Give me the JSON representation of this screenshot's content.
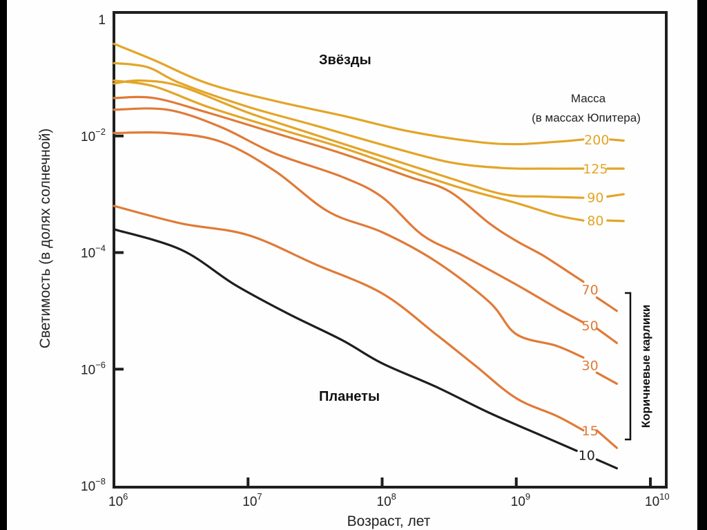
{
  "chart_data": {
    "type": "line",
    "title": "",
    "xlabel": "Возраст, лет",
    "ylabel": "Светимость (в долях солнечной)",
    "xscale": "log",
    "yscale": "log",
    "xlim": [
      1000000,
      10000000000
    ],
    "ylim": [
      1e-08,
      1
    ],
    "x_ticks": [
      {
        "value": 1000000,
        "base": "10",
        "exp": "6"
      },
      {
        "value": 10000000,
        "base": "10",
        "exp": "7"
      },
      {
        "value": 100000000,
        "base": "10",
        "exp": "8"
      },
      {
        "value": 1000000000,
        "base": "10",
        "exp": "9"
      },
      {
        "value": 10000000000,
        "base": "10",
        "exp": "10"
      }
    ],
    "y_ticks": [
      {
        "value": 1,
        "base": "1",
        "exp": ""
      },
      {
        "value": 0.01,
        "base": "10",
        "exp": "−2"
      },
      {
        "value": 0.0001,
        "base": "10",
        "exp": "−4"
      },
      {
        "value": 1e-06,
        "base": "10",
        "exp": "−6"
      },
      {
        "value": 1e-08,
        "base": "10",
        "exp": "−8"
      }
    ],
    "grid": false,
    "annotations": {
      "stars": "Звёзды",
      "planets": "Планеты",
      "legend_title_line1": "Масса",
      "legend_title_line2": "(в массах Юпитера)",
      "brown_dwarfs": "Коричневые карлики"
    },
    "legend_placement": "right",
    "series": [
      {
        "name": "200",
        "group": "star",
        "color": "#e3a528",
        "points_log10": [
          [
            6.0,
            -0.42
          ],
          [
            6.3,
            -0.7
          ],
          [
            6.7,
            -1.1
          ],
          [
            7.2,
            -1.4
          ],
          [
            7.7,
            -1.65
          ],
          [
            8.2,
            -1.92
          ],
          [
            8.7,
            -2.1
          ],
          [
            9.0,
            -2.14
          ],
          [
            9.3,
            -2.1
          ],
          [
            9.5,
            -2.06
          ]
        ],
        "tail_log10": [
          [
            9.7,
            -2.06
          ],
          [
            9.8,
            -2.08
          ]
        ]
      },
      {
        "name": "125",
        "group": "star",
        "color": "#e3a528",
        "points_log10": [
          [
            6.0,
            -0.75
          ],
          [
            6.25,
            -0.82
          ],
          [
            6.5,
            -1.1
          ],
          [
            7.0,
            -1.5
          ],
          [
            7.5,
            -1.82
          ],
          [
            8.0,
            -2.15
          ],
          [
            8.5,
            -2.45
          ],
          [
            8.9,
            -2.55
          ],
          [
            9.2,
            -2.56
          ],
          [
            9.5,
            -2.56
          ]
        ],
        "tail_log10": [
          [
            9.68,
            -2.56
          ],
          [
            9.8,
            -2.56
          ]
        ]
      },
      {
        "name": "90",
        "group": "star",
        "color": "#e3a528",
        "points_log10": [
          [
            6.0,
            -1.1
          ],
          [
            6.2,
            -1.05
          ],
          [
            6.5,
            -1.15
          ],
          [
            7.0,
            -1.6
          ],
          [
            7.5,
            -1.98
          ],
          [
            8.0,
            -2.35
          ],
          [
            8.5,
            -2.72
          ],
          [
            8.9,
            -3.0
          ],
          [
            9.2,
            -3.04
          ],
          [
            9.5,
            -3.06
          ]
        ],
        "tail_log10": [
          [
            9.68,
            -3.04
          ],
          [
            9.8,
            -3.0
          ]
        ]
      },
      {
        "name": "80",
        "group": "star",
        "color": "#e3a528",
        "points_log10": [
          [
            6.0,
            -1.05
          ],
          [
            6.3,
            -1.15
          ],
          [
            6.7,
            -1.5
          ],
          [
            7.2,
            -1.86
          ],
          [
            7.7,
            -2.2
          ],
          [
            8.2,
            -2.6
          ],
          [
            8.6,
            -2.9
          ],
          [
            9.0,
            -3.15
          ],
          [
            9.3,
            -3.36
          ],
          [
            9.5,
            -3.45
          ]
        ],
        "tail_log10": [
          [
            9.68,
            -3.45
          ],
          [
            9.8,
            -3.46
          ]
        ]
      },
      {
        "name": "70",
        "group": "brown_dwarf",
        "color": "#e07a37",
        "points_log10": [
          [
            6.0,
            -1.35
          ],
          [
            6.3,
            -1.35
          ],
          [
            6.7,
            -1.6
          ],
          [
            7.2,
            -1.95
          ],
          [
            7.7,
            -2.3
          ],
          [
            8.2,
            -2.7
          ],
          [
            8.5,
            -2.95
          ],
          [
            8.8,
            -3.5
          ],
          [
            9.0,
            -3.8
          ],
          [
            9.2,
            -4.05
          ],
          [
            9.4,
            -4.35
          ],
          [
            9.5,
            -4.5
          ]
        ],
        "tail_log10": [
          [
            9.6,
            -4.77
          ],
          [
            9.75,
            -5.0
          ]
        ]
      },
      {
        "name": "50",
        "group": "brown_dwarf",
        "color": "#e07a37",
        "points_log10": [
          [
            6.0,
            -1.55
          ],
          [
            6.4,
            -1.55
          ],
          [
            6.8,
            -1.85
          ],
          [
            7.2,
            -2.3
          ],
          [
            7.7,
            -2.7
          ],
          [
            8.0,
            -3.05
          ],
          [
            8.3,
            -3.7
          ],
          [
            8.6,
            -4.05
          ],
          [
            9.0,
            -4.55
          ],
          [
            9.3,
            -4.95
          ],
          [
            9.5,
            -5.2
          ]
        ],
        "tail_log10": [
          [
            9.6,
            -5.3
          ],
          [
            9.75,
            -5.55
          ]
        ]
      },
      {
        "name": "30",
        "group": "brown_dwarf",
        "color": "#e07a37",
        "points_log10": [
          [
            6.0,
            -1.95
          ],
          [
            6.4,
            -1.95
          ],
          [
            6.8,
            -2.1
          ],
          [
            7.2,
            -2.6
          ],
          [
            7.6,
            -3.3
          ],
          [
            8.0,
            -3.65
          ],
          [
            8.4,
            -4.15
          ],
          [
            8.8,
            -4.85
          ],
          [
            9.0,
            -5.4
          ],
          [
            9.3,
            -5.6
          ],
          [
            9.5,
            -5.8
          ]
        ],
        "tail_log10": [
          [
            9.6,
            -6.06
          ],
          [
            9.75,
            -6.25
          ]
        ]
      },
      {
        "name": "15",
        "group": "brown_dwarf",
        "color": "#e07a37",
        "points_log10": [
          [
            6.0,
            -3.2
          ],
          [
            6.5,
            -3.5
          ],
          [
            7.0,
            -3.7
          ],
          [
            7.5,
            -4.2
          ],
          [
            8.0,
            -4.7
          ],
          [
            8.4,
            -5.4
          ],
          [
            8.7,
            -5.95
          ],
          [
            9.0,
            -6.5
          ],
          [
            9.3,
            -6.8
          ],
          [
            9.5,
            -7.05
          ]
        ],
        "tail_log10": [
          [
            9.6,
            -7.05
          ],
          [
            9.75,
            -7.35
          ]
        ]
      },
      {
        "name": "10",
        "group": "planet",
        "color": "#1e1e1e",
        "points_log10": [
          [
            6.0,
            -3.6
          ],
          [
            6.5,
            -3.95
          ],
          [
            6.9,
            -4.55
          ],
          [
            7.3,
            -5.05
          ],
          [
            7.7,
            -5.5
          ],
          [
            8.0,
            -5.9
          ],
          [
            8.4,
            -6.3
          ],
          [
            8.8,
            -6.75
          ],
          [
            9.2,
            -7.15
          ],
          [
            9.45,
            -7.4
          ]
        ],
        "tail_log10": [
          [
            9.6,
            -7.55
          ],
          [
            9.75,
            -7.7
          ]
        ]
      }
    ]
  }
}
